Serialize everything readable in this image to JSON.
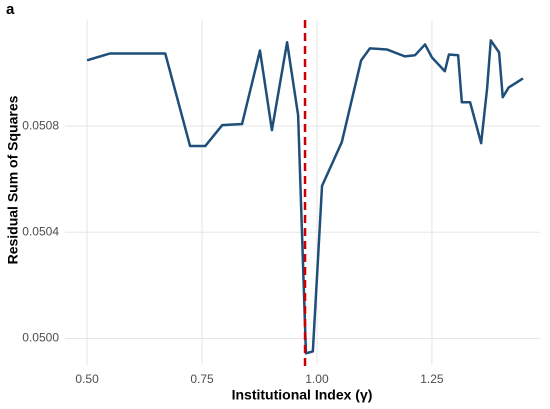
{
  "chart_data": {
    "type": "line",
    "title": "a",
    "x_label": "Institutional Index (γ)",
    "y_label": "Residual Sum of Squares",
    "x": [
      0.5,
      0.55,
      0.67,
      0.724,
      0.757,
      0.794,
      0.837,
      0.876,
      0.902,
      0.935,
      0.959,
      0.976,
      0.991,
      1.011,
      1.054,
      1.096,
      1.115,
      1.152,
      1.191,
      1.213,
      1.235,
      1.25,
      1.278,
      1.287,
      1.307,
      1.315,
      1.333,
      1.357,
      1.37,
      1.378,
      1.396,
      1.404,
      1.417,
      1.448
    ],
    "series": [
      {
        "color": "#1f4e79",
        "values": [
          0.051048,
          0.051074,
          0.051074,
          0.050725,
          0.050725,
          0.050804,
          0.050808,
          0.051085,
          0.050785,
          0.051116,
          0.050841,
          0.049944,
          0.049951,
          0.050575,
          0.05074,
          0.051048,
          0.051093,
          0.051089,
          0.051063,
          0.051067,
          0.051108,
          0.051059,
          0.051007,
          0.05107,
          0.051067,
          0.05089,
          0.05089,
          0.050736,
          0.050943,
          0.051123,
          0.051078,
          0.050909,
          0.050946,
          0.05098
        ]
      }
    ],
    "vline": {
      "x": 0.974,
      "color": "#cc0000"
    },
    "xlim": [
      0.452,
      1.485
    ],
    "ylim": [
      0.0499,
      0.0512
    ],
    "xticks": [
      {
        "value": 0.5,
        "label": "0.50"
      },
      0.75,
      {
        "value": 1.0,
        "label": "1.00"
      },
      1.25
    ],
    "yticks": [
      {
        "value": 0.05,
        "label": "0.0500"
      },
      0.0504,
      0.0508
    ],
    "grid": true
  }
}
